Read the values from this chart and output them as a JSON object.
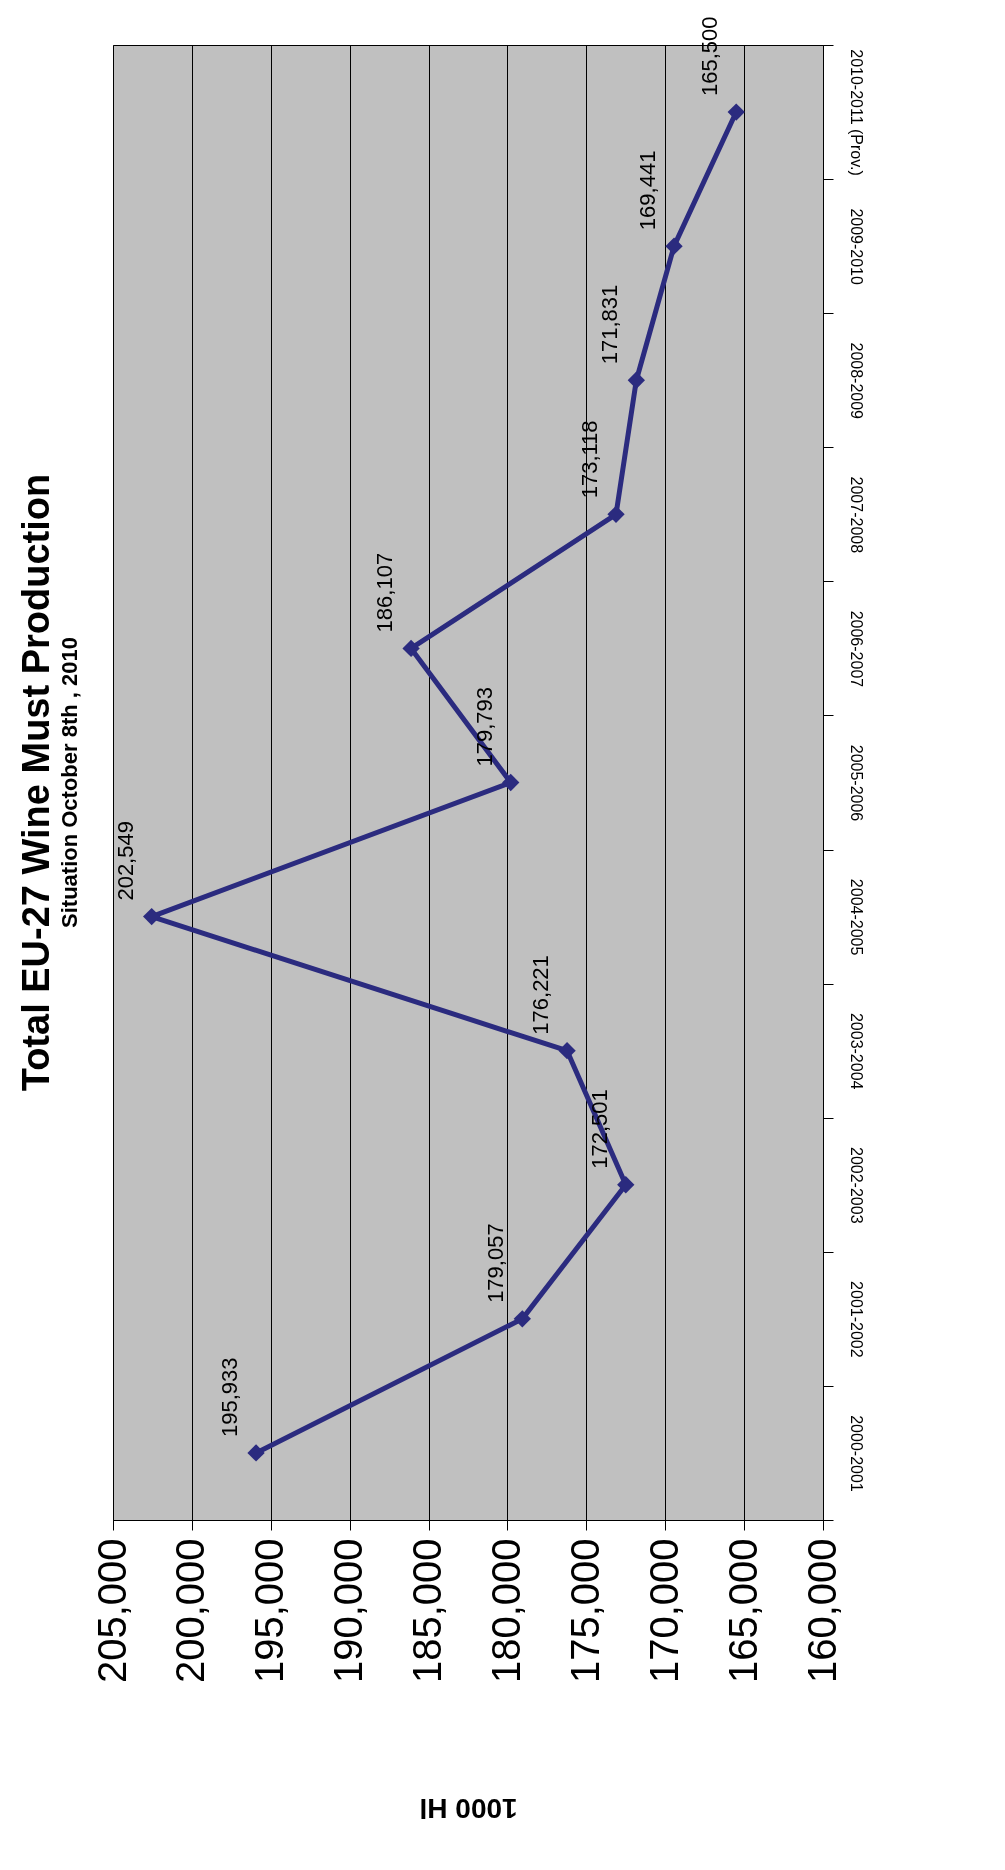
{
  "chart_data": {
    "type": "line",
    "orientation": "horizontal",
    "title": "Total EU-27 Wine Must Production",
    "subtitle": "Situation  October 8th , 2010",
    "xlabel": "1000 Hl",
    "categories": [
      "2010-2011 (Prov.)",
      "2009-2010",
      "2008-2009",
      "2007-2008",
      "2006-2007",
      "2005-2006",
      "2004-2005",
      "2003-2004",
      "2002-2003",
      "2001-2002",
      "2000-2001"
    ],
    "series": [
      {
        "color": "#2b2b7f",
        "values": [
          165500,
          169441,
          171831,
          173118,
          186107,
          179793,
          202549,
          176221,
          172501,
          179057,
          195933
        ],
        "value_labels": [
          "165,500",
          "169,441",
          "171,831",
          "173,118",
          "186,107",
          "179,793",
          "202,549",
          "176,221",
          "172,501",
          "179,057",
          "195,933"
        ]
      }
    ],
    "xlim": [
      205000,
      160000
    ],
    "xticks": [
      {
        "value": 205000,
        "label": "205,000"
      },
      {
        "value": 200000,
        "label": "200,000"
      },
      {
        "value": 195000,
        "label": "195,000"
      },
      {
        "value": 190000,
        "label": "190,000"
      },
      {
        "value": 185000,
        "label": "185,000"
      },
      {
        "value": 180000,
        "label": "180,000"
      },
      {
        "value": 175000,
        "label": "175,000"
      },
      {
        "value": 170000,
        "label": "170,000"
      },
      {
        "value": 165000,
        "label": "165,000"
      },
      {
        "value": 160000,
        "label": "160,000"
      }
    ],
    "grid": "x",
    "marker": "diamond",
    "line_style": "solid"
  }
}
